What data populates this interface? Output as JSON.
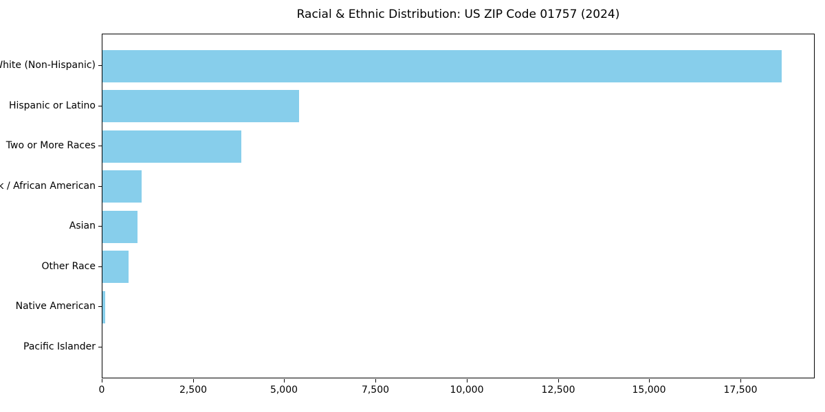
{
  "chart_data": {
    "type": "bar",
    "orientation": "horizontal",
    "title": "Racial & Ethnic Distribution: US ZIP Code 01757 (2024)",
    "categories": [
      "White (Non-Hispanic)",
      "Hispanic or Latino",
      "Two or More Races",
      "Black / African American",
      "Asian",
      "Other Race",
      "Native American",
      "Pacific Islander"
    ],
    "values": [
      18600,
      5380,
      3800,
      1070,
      960,
      715,
      80,
      0
    ],
    "xlabel": "",
    "ylabel": "",
    "xlim": [
      0,
      19530
    ],
    "xticks": [
      {
        "value": 0,
        "label": "0"
      },
      {
        "value": 2500,
        "label": "2,500"
      },
      {
        "value": 5000,
        "label": "5,000"
      },
      {
        "value": 7500,
        "label": "7,500"
      },
      {
        "value": 10000,
        "label": "10,000"
      },
      {
        "value": 12500,
        "label": "12,500"
      },
      {
        "value": 15000,
        "label": "15,000"
      },
      {
        "value": 17500,
        "label": "17,500"
      }
    ],
    "grid": false,
    "legend": null,
    "bar_color": "#87CEEB",
    "axis_color": "#000000",
    "text_color": "#000000",
    "background_color": "#ffffff"
  }
}
